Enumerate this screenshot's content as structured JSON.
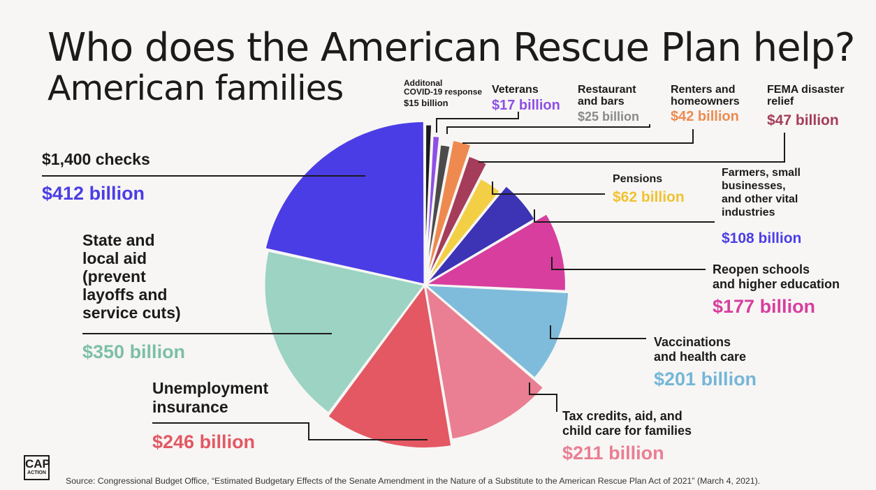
{
  "title": "Who does the American Rescue Plan help?",
  "subtitle": "American families",
  "source": "Source: Congressional Budget Office, “Estimated Budgetary Effects of the Senate Amendment in the Nature of a Substitute to the American Rescue Plan Act of 2021” (March 4, 2021).",
  "logo": {
    "text": "CAP",
    "subtext": "ACTION"
  },
  "chart_data": {
    "type": "pie",
    "title": "Who does the American Rescue Plan help?",
    "subtitle": "American families",
    "unit": "billion USD",
    "slices": [
      {
        "label": "Additonal COVID-19 response",
        "value": 15,
        "value_label": "$15 billion",
        "color": "#1b1b1b"
      },
      {
        "label": "Veterans",
        "value": 17,
        "value_label": "$17 billion",
        "color": "#8e4fe6"
      },
      {
        "label": "Restaurant and bars",
        "value": 25,
        "value_label": "$25 billion",
        "color": "#4b4b4b"
      },
      {
        "label": "Renters and homeowners",
        "value": 42,
        "value_label": "$42 billion",
        "color": "#ee8a4f"
      },
      {
        "label": "FEMA disaster relief",
        "value": 47,
        "value_label": "$47 billion",
        "color": "#a43c5a"
      },
      {
        "label": "Pensions",
        "value": 62,
        "value_label": "$62 billion",
        "color": "#f3cf45"
      },
      {
        "label": "Farmers, small businesses, and other vital industries",
        "value": 108,
        "value_label": "$108 billion",
        "color": "#3c33b5"
      },
      {
        "label": "Reopen schools and higher education",
        "value": 177,
        "value_label": "$177 billion",
        "color": "#d83e9e"
      },
      {
        "label": "Vaccinations and health care",
        "value": 201,
        "value_label": "$201 billion",
        "color": "#7fbcdb"
      },
      {
        "label": "Tax credits, aid, and child care for families",
        "value": 211,
        "value_label": "$211 billion",
        "color": "#ea7e92"
      },
      {
        "label": "Unemployment insurance",
        "value": 246,
        "value_label": "$246 billion",
        "color": "#e35863"
      },
      {
        "label": "State and local aid (prevent layoffs and service cuts)",
        "value": 350,
        "value_label": "$350 billion",
        "color": "#9cd3c3"
      },
      {
        "label": "$1,400 checks",
        "value": 412,
        "value_label": "$412 billion",
        "color": "#4b3de6"
      }
    ]
  }
}
